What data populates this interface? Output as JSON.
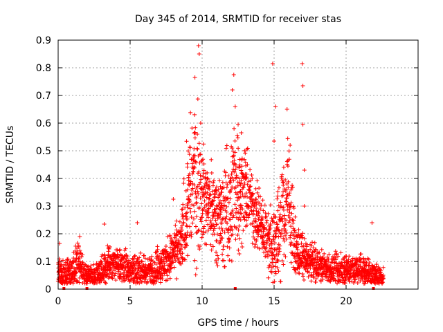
{
  "chart_data": {
    "type": "scatter",
    "title": "Day 345 of 2014, SRMTID for receiver stas",
    "xlabel": "GPS time / hours",
    "ylabel": "SRMTID / TECUs",
    "xlim": [
      0,
      25
    ],
    "ylim": [
      0,
      0.9
    ],
    "xticks": [
      0,
      5,
      10,
      15,
      20
    ],
    "yticks": [
      0,
      0.1,
      0.2,
      0.3,
      0.4,
      0.5,
      0.6,
      0.7,
      0.8,
      0.9
    ],
    "xtick_labels": [
      "0",
      "5",
      "10",
      "15",
      "20"
    ],
    "ytick_labels": [
      "0",
      "0.1",
      "0.2",
      "0.3",
      "0.4",
      "0.5",
      "0.6",
      "0.7",
      "0.8",
      "0.9"
    ],
    "grid": true,
    "marker": "+",
    "color": "#ff0000",
    "gap_markers_x": [
      0.4,
      2.0,
      12.3,
      21.9
    ],
    "series": [
      {
        "name": "SRMTID",
        "envelope_hours": [
          0,
          0.3,
          1,
          1.5,
          2,
          2.5,
          3,
          3.5,
          4,
          5,
          6,
          7,
          7.5,
          8,
          8.5,
          9,
          9.5,
          10,
          10.5,
          11,
          11.5,
          12,
          12.5,
          13,
          13.5,
          14,
          14.5,
          15,
          15.5,
          16,
          16.5,
          17,
          17.5,
          18,
          19,
          20,
          21,
          22,
          22.6
        ],
        "envelope_median": [
          0.06,
          0.05,
          0.07,
          0.08,
          0.05,
          0.05,
          0.06,
          0.09,
          0.09,
          0.07,
          0.06,
          0.08,
          0.1,
          0.13,
          0.15,
          0.32,
          0.4,
          0.35,
          0.3,
          0.28,
          0.25,
          0.33,
          0.38,
          0.36,
          0.3,
          0.24,
          0.18,
          0.16,
          0.24,
          0.32,
          0.14,
          0.12,
          0.1,
          0.09,
          0.07,
          0.07,
          0.07,
          0.05,
          0.04
        ],
        "envelope_spread": [
          0.04,
          0.04,
          0.05,
          0.06,
          0.03,
          0.04,
          0.05,
          0.06,
          0.05,
          0.05,
          0.05,
          0.05,
          0.06,
          0.07,
          0.08,
          0.18,
          0.25,
          0.15,
          0.12,
          0.12,
          0.14,
          0.2,
          0.18,
          0.12,
          0.1,
          0.1,
          0.08,
          0.12,
          0.15,
          0.18,
          0.07,
          0.06,
          0.05,
          0.05,
          0.04,
          0.05,
          0.05,
          0.04,
          0.03
        ],
        "outliers": [
          {
            "x": 9.75,
            "y": 0.88
          },
          {
            "x": 9.8,
            "y": 0.85
          },
          {
            "x": 12.2,
            "y": 0.775
          },
          {
            "x": 14.9,
            "y": 0.815
          },
          {
            "x": 16.95,
            "y": 0.815
          },
          {
            "x": 17.0,
            "y": 0.735
          },
          {
            "x": 17.0,
            "y": 0.595
          },
          {
            "x": 15.1,
            "y": 0.66
          },
          {
            "x": 15.9,
            "y": 0.65
          },
          {
            "x": 3.2,
            "y": 0.235
          },
          {
            "x": 5.5,
            "y": 0.24
          },
          {
            "x": 21.8,
            "y": 0.24
          },
          {
            "x": 1.5,
            "y": 0.19
          },
          {
            "x": 12.5,
            "y": 0.595
          },
          {
            "x": 17.1,
            "y": 0.43
          },
          {
            "x": 17.1,
            "y": 0.3
          },
          {
            "x": 15.0,
            "y": 0.535
          },
          {
            "x": 9.5,
            "y": 0.765
          },
          {
            "x": 12.1,
            "y": 0.72
          },
          {
            "x": 12.3,
            "y": 0.66
          },
          {
            "x": 9.9,
            "y": 0.6
          },
          {
            "x": 8.0,
            "y": 0.325
          },
          {
            "x": 0.1,
            "y": 0.165
          }
        ]
      }
    ]
  }
}
